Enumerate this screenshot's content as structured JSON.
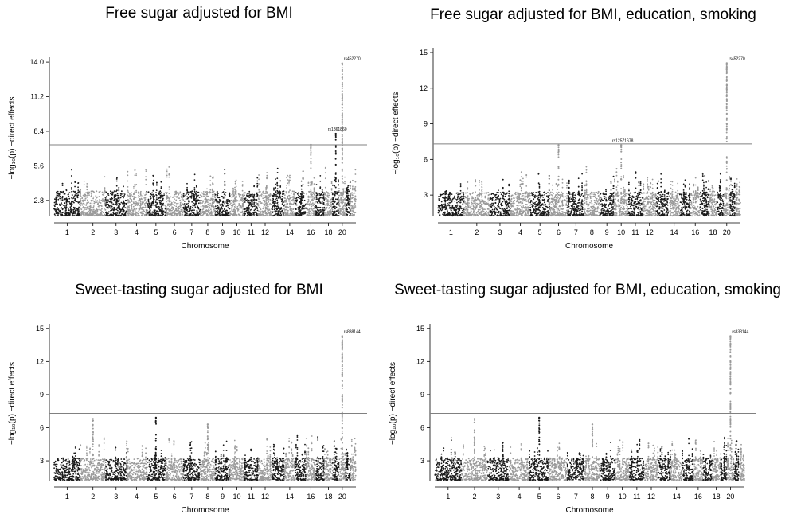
{
  "colors": {
    "dark": "#1a1a1a",
    "light": "#9a9a9a",
    "threshold": "#808080"
  },
  "chart_data": [
    {
      "type": "scatter",
      "subtype": "manhattan",
      "title": "Free sugar adjusted for BMI",
      "xlabel": "Chromosome",
      "ylabel": "−log₁₀(p) −direct effects",
      "yticks": [
        "2.8",
        "5.6",
        "8.4",
        "11.2",
        "14.0"
      ],
      "ylim": [
        1.5,
        14.2
      ],
      "xtick_labels": [
        "1",
        "2",
        "3",
        "4",
        "5",
        "6",
        "7",
        "8",
        "9",
        "10",
        "11",
        "12",
        "14",
        "16",
        "18",
        "20"
      ],
      "threshold": 7.3,
      "peaks": [
        {
          "chromosome": 16,
          "max": 7.3
        },
        {
          "chromosome": 19,
          "max": 8.2
        },
        {
          "chromosome": 20,
          "max": 13.9
        }
      ],
      "annotations": [
        {
          "label": "rs452270",
          "chromosome": 20,
          "y": 13.9
        },
        {
          "label": "rs1861860",
          "chromosome": 19,
          "y": 8.2
        }
      ]
    },
    {
      "type": "scatter",
      "subtype": "manhattan",
      "title": "Free sugar adjusted for BMI, education, smoking",
      "xlabel": "Chromosome",
      "ylabel": "−log₁₀(p) −direct effects",
      "yticks": [
        "3",
        "6",
        "9",
        "12",
        "15"
      ],
      "ylim": [
        1.2,
        15.2
      ],
      "xtick_labels": [
        "1",
        "2",
        "3",
        "4",
        "5",
        "6",
        "7",
        "8",
        "9",
        "10",
        "11",
        "12",
        "14",
        "16",
        "18",
        "20"
      ],
      "threshold": 7.3,
      "peaks": [
        {
          "chromosome": 6,
          "max": 7.2
        },
        {
          "chromosome": 10,
          "max": 7.2
        },
        {
          "chromosome": 20,
          "max": 14.1
        }
      ],
      "annotations": [
        {
          "label": "rs452270",
          "chromosome": 20,
          "y": 14.1
        },
        {
          "label": "rs12571678",
          "chromosome": 10,
          "y": 7.2
        }
      ]
    },
    {
      "type": "scatter",
      "subtype": "manhattan",
      "title": "Sweet-tasting sugar adjusted for BMI",
      "xlabel": "Chromosome",
      "ylabel": "−log₁₀(p) −direct effects",
      "yticks": [
        "3",
        "6",
        "9",
        "12",
        "15"
      ],
      "ylim": [
        1.2,
        15.2
      ],
      "xtick_labels": [
        "1",
        "2",
        "3",
        "4",
        "5",
        "6",
        "7",
        "8",
        "9",
        "10",
        "11",
        "12",
        "14",
        "16",
        "18",
        "20"
      ],
      "threshold": 7.3,
      "peaks": [
        {
          "chromosome": 2,
          "max": 6.8
        },
        {
          "chromosome": 5,
          "max": 6.9
        },
        {
          "chromosome": 8,
          "max": 6.3
        },
        {
          "chromosome": 20,
          "max": 14.3
        }
      ],
      "annotations": [
        {
          "label": "rs838144",
          "chromosome": 20,
          "y": 14.3
        }
      ]
    },
    {
      "type": "scatter",
      "subtype": "manhattan",
      "title": "Sweet-tasting sugar adjusted for BMI, education, smoking",
      "xlabel": "Chromosome",
      "ylabel": "−log₁₀(p) −direct effects",
      "yticks": [
        "3",
        "6",
        "9",
        "12",
        "15"
      ],
      "ylim": [
        1.2,
        15.2
      ],
      "xtick_labels": [
        "1",
        "2",
        "3",
        "4",
        "5",
        "6",
        "7",
        "8",
        "9",
        "10",
        "11",
        "12",
        "14",
        "16",
        "18",
        "20"
      ],
      "threshold": 7.3,
      "peaks": [
        {
          "chromosome": 2,
          "max": 6.8
        },
        {
          "chromosome": 5,
          "max": 6.9
        },
        {
          "chromosome": 8,
          "max": 6.3
        },
        {
          "chromosome": 20,
          "max": 14.3
        }
      ],
      "annotations": [
        {
          "label": "rs838144",
          "chromosome": 20,
          "y": 14.3
        }
      ]
    }
  ]
}
